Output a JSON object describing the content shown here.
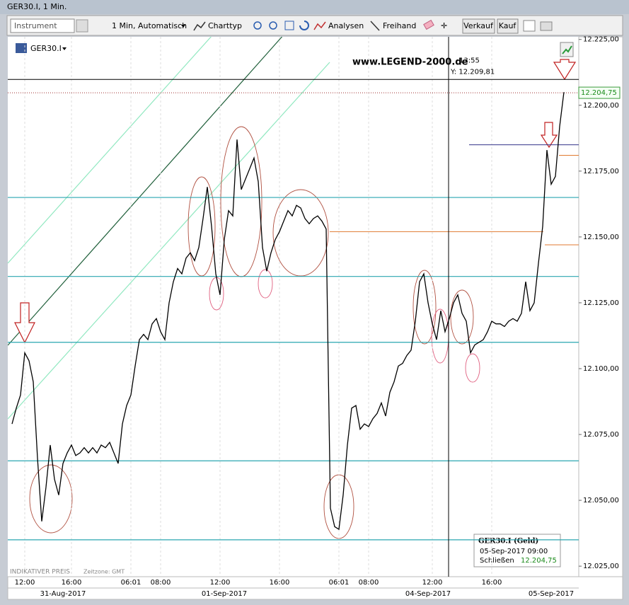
{
  "window": {
    "title": "GER30.I, 1 Min."
  },
  "toolbar": {
    "instrument_placeholder": "Instrument",
    "interval": "1 Min, Automatisch",
    "chart_type": "Charttyp",
    "analyses": "Analysen",
    "freehand": "Freihand",
    "sell": "Verkauf",
    "buy": "Kauf"
  },
  "chart_data": {
    "type": "line",
    "title": "GER30.I",
    "watermark": "www.LEGEND-2000.de",
    "footer": "INDIKATIVER PREIS",
    "timezone": "Zeitzone: GMT",
    "ylim": [
      12021,
      12226
    ],
    "yticks": [
      {
        "value": 12225,
        "label": "12.225,00"
      },
      {
        "value": 12200,
        "label": "12.200,00"
      },
      {
        "value": 12175,
        "label": "12.175,00"
      },
      {
        "value": 12150,
        "label": "12.150,00"
      },
      {
        "value": 12125,
        "label": "12.125,00"
      },
      {
        "value": 12100,
        "label": "12.100,00"
      },
      {
        "value": 12075,
        "label": "12.075,00"
      },
      {
        "value": 12050,
        "label": "12.050,00"
      },
      {
        "value": 12025,
        "label": "12.025,00"
      }
    ],
    "categories": [
      null,
      null,
      null,
      "12:00",
      null,
      null,
      null,
      null,
      null,
      null,
      null,
      null,
      null,
      null,
      "16:00",
      null,
      null,
      null,
      null,
      null,
      null,
      null,
      null,
      null,
      null,
      null,
      null,
      null,
      "06:01",
      null,
      null,
      null,
      null,
      null,
      null,
      "08:00",
      null,
      null,
      null,
      null,
      null,
      null,
      null,
      null,
      null,
      null,
      null,
      null,
      null,
      "12:00",
      null,
      null,
      null,
      null,
      null,
      null,
      null,
      null,
      null,
      null,
      null,
      null,
      null,
      "16:00",
      null,
      null,
      null,
      null,
      null,
      null,
      null,
      null,
      null,
      null,
      null,
      null,
      null,
      "06:01",
      null,
      null,
      null,
      null,
      null,
      null,
      "08:00",
      null,
      null,
      null,
      null,
      null,
      null,
      null,
      null,
      null,
      null,
      null,
      null,
      null,
      null,
      "12:00",
      null,
      null,
      null,
      null,
      null,
      null,
      null,
      null,
      null,
      null,
      null,
      null,
      null,
      "16:00",
      null,
      null,
      null,
      null,
      null,
      null,
      null,
      null,
      null,
      null,
      null,
      null,
      null,
      null,
      null,
      null,
      null
    ],
    "dates": [
      null,
      null,
      null,
      null,
      null,
      null,
      null,
      null,
      null,
      null,
      null,
      null,
      "31-Aug-2017",
      null,
      null,
      null,
      null,
      null,
      null,
      null,
      null,
      null,
      null,
      null,
      null,
      null,
      null,
      null,
      null,
      null,
      null,
      null,
      null,
      null,
      null,
      null,
      null,
      null,
      null,
      null,
      null,
      null,
      null,
      null,
      null,
      null,
      null,
      null,
      null,
      null,
      "01-Sep-2017",
      null,
      null,
      null,
      null,
      null,
      null,
      null,
      null,
      null,
      null,
      null,
      null,
      null,
      null,
      null,
      null,
      null,
      null,
      null,
      null,
      null,
      null,
      null,
      null,
      null,
      null,
      null,
      null,
      null,
      null,
      null,
      null,
      null,
      null,
      null,
      null,
      null,
      null,
      null,
      null,
      null,
      null,
      null,
      null,
      null,
      null,
      null,
      "04-Sep-2017",
      null,
      null,
      null,
      null,
      null,
      null,
      null,
      null,
      null,
      null,
      null,
      null,
      null,
      null,
      null,
      null,
      null,
      null,
      null,
      null,
      null,
      null,
      null,
      null,
      null,
      null,
      null,
      null,
      "05-Sep-2017",
      null,
      null,
      null
    ],
    "series": [
      {
        "name": "GER30.I",
        "color": "#000000",
        "values": [
          12079,
          12085,
          12090,
          12106,
          12103,
          12095,
          12066,
          12042,
          12055,
          12071,
          12058,
          12052,
          12064,
          12068,
          12071,
          12067,
          12068,
          12070,
          12068,
          12070,
          12068,
          12071,
          12070,
          12072,
          12068,
          12064,
          12079,
          12086,
          12090,
          12101,
          12111,
          12113,
          12111,
          12117,
          12119,
          12114,
          12111,
          12125,
          12133,
          12138,
          12136,
          12142,
          12144,
          12141,
          12146,
          12157,
          12169,
          12154,
          12136,
          12128,
          12149,
          12160,
          12158,
          12187,
          12168,
          12172,
          12176,
          12180,
          12171,
          12146,
          12137,
          12144,
          12149,
          12152,
          12156,
          12160,
          12158,
          12162,
          12161,
          12157,
          12155,
          12157,
          12158,
          12156,
          12153,
          12047,
          12040,
          12039,
          12052,
          12071,
          12085,
          12086,
          12077,
          12079,
          12078,
          12081,
          12083,
          12087,
          12082,
          12091,
          12095,
          12101,
          12102,
          12105,
          12107,
          12118,
          12133,
          12136,
          12125,
          12117,
          12111,
          12122,
          12114,
          12119,
          12125,
          12128,
          12121,
          12118,
          12106,
          12109,
          12110,
          12111,
          12114,
          12118,
          12117,
          12117,
          12116,
          12118,
          12119,
          12118,
          12121,
          12133,
          12122,
          12125,
          12140,
          12154,
          12183,
          12170,
          12173,
          12192,
          12205
        ]
      }
    ],
    "support_levels": [
      12165,
      12135,
      12110,
      12065,
      12035
    ],
    "support_color": "#2aa6b0",
    "extra_lines": [
      {
        "value": 12185,
        "color": "#33338a"
      },
      {
        "value": 12152,
        "color": "#e07a30"
      },
      {
        "value": 12147,
        "color": "#e07a30"
      },
      {
        "value": 12181,
        "color": "#e07a30"
      }
    ],
    "last_price": 12204.75,
    "last_price_label": "12.204,75",
    "crosshair": {
      "time": "13:55",
      "price": 12209.81,
      "price_label": "Y: 12.209,81"
    },
    "info_box": {
      "title": "GER30.I (Geld)",
      "date": "05-Sep-2017 09:00",
      "close_label": "Schließen",
      "close_value": "12.204,75"
    }
  }
}
